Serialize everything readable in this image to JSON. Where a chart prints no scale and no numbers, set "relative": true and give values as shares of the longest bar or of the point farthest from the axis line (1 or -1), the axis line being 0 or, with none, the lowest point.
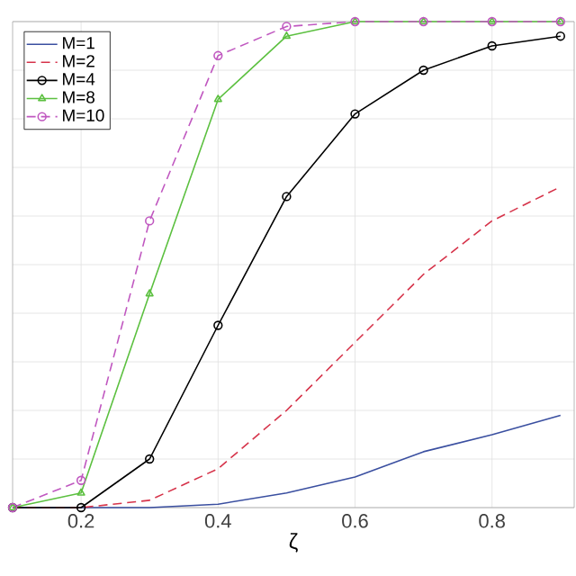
{
  "chart_data": {
    "type": "line",
    "xlabel": "ζ",
    "x": [
      0.1,
      0.2,
      0.3,
      0.4,
      0.5,
      0.6,
      0.7,
      0.8,
      0.9
    ],
    "xlim": [
      0.1,
      0.92
    ],
    "xticks": [
      0.2,
      0.4,
      0.6,
      0.8
    ],
    "relative": true,
    "grid": true,
    "legend": "top left",
    "series": [
      {
        "name": "M=1",
        "color": "#3a4fa0",
        "marker": "none",
        "line_style": "solid",
        "values": [
          0,
          0,
          0,
          0.007,
          0.03,
          0.063,
          0.115,
          0.15,
          0.19
        ]
      },
      {
        "name": "M=2",
        "color": "#d6334a",
        "marker": "none",
        "line_style": "dashed",
        "values": [
          0,
          0,
          0.015,
          0.08,
          0.2,
          0.34,
          0.48,
          0.59,
          0.66
        ]
      },
      {
        "name": "M=4",
        "color": "#000000",
        "marker": "circle",
        "line_style": "solid",
        "values": [
          0,
          0,
          0.1,
          0.375,
          0.64,
          0.81,
          0.9,
          0.95,
          0.97
        ]
      },
      {
        "name": "M=8",
        "color": "#5cc040",
        "marker": "triangle",
        "line_style": "solid",
        "values": [
          0,
          0.03,
          0.44,
          0.84,
          0.97,
          1,
          1,
          1,
          1
        ]
      },
      {
        "name": "M=10",
        "color": "#c058c0",
        "marker": "circle",
        "line_style": "dashed",
        "values": [
          0,
          0.056,
          0.59,
          0.93,
          0.99,
          1,
          1,
          1,
          1
        ]
      }
    ]
  }
}
